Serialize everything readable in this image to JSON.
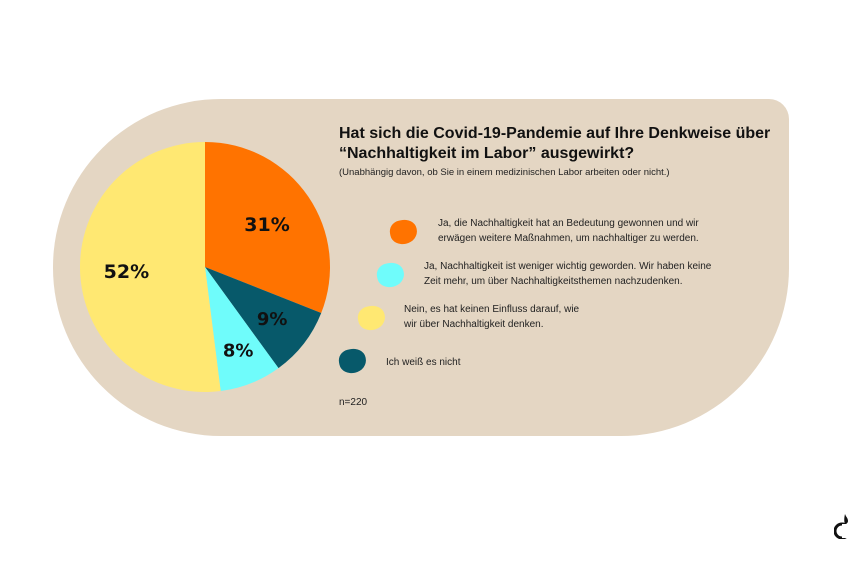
{
  "chart_data": {
    "type": "pie",
    "title": "Hat sich die Covid-19-Pandemie auf Ihre Denkweise über “Nachhaltigkeit im Labor” ausgewirkt?",
    "subtitle": "(Unabhängig davon, ob Sie in einem medizinischen Labor arbeiten oder nicht.)",
    "slices": [
      {
        "name": "Ja, die Nachhaltigkeit hat an Bedeutung gewonnen und wir erwägen weitere Maßnahmen, um nachhaltiger zu werden.",
        "value": 31,
        "label": "31%",
        "color": "#ff7300"
      },
      {
        "name": "Ich weiß es nicht",
        "value": 9,
        "label": "9%",
        "color": "#07596a"
      },
      {
        "name": "Ja, Nachhaltigkeit ist weniger wichtig geworden. Wir haben keine Zeit mehr, um über Nachhaltigkeitsthemen nachzudenken.",
        "value": 8,
        "label": "8%",
        "color": "#6ffcfb"
      },
      {
        "name": "Nein, es hat keinen Einfluss darauf, wie wir über Nachhaltigkeit denken.",
        "value": 52,
        "label": "52%",
        "color": "#ffe872"
      }
    ],
    "note": "n=220"
  },
  "legend": [
    {
      "line1": "Ja, die Nachhaltigkeit hat an Bedeutung gewonnen und wir",
      "line2": "erwägen weitere Maßnahmen, um nachhaltiger zu werden.",
      "color": "#ff7300"
    },
    {
      "line1": "Ja, Nachhaltigkeit ist weniger wichtig geworden. Wir haben keine",
      "line2": "Zeit mehr, um über Nachhaltigkeitsthemen nachzudenken.",
      "color": "#6ffcfb"
    },
    {
      "line1": "Nein, es hat keinen Einfluss darauf, wie",
      "line2": "wir über Nachhaltigkeit denken.",
      "color": "#ffe872"
    },
    {
      "line1": "Ich weiß es nicht",
      "line2": "",
      "color": "#07596a"
    }
  ]
}
